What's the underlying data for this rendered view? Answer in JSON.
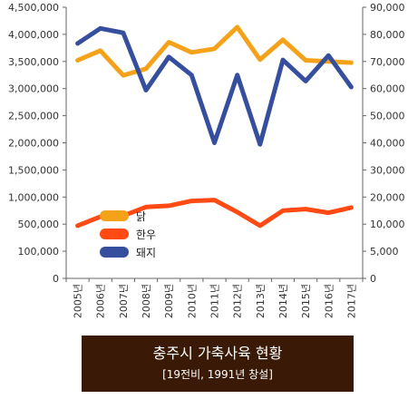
{
  "chart_data": {
    "type": "line",
    "title": "충주시 가축사육 현황",
    "subtitle": "[19전비, 1991년 창설]",
    "categories": [
      "2005년",
      "2006년",
      "2007년",
      "2008년",
      "2009년",
      "2010년",
      "2011년",
      "2012년",
      "2013년",
      "2014년",
      "2015년",
      "2016년",
      "2017년"
    ],
    "left_axis": {
      "ylim": [
        0,
        4500000
      ],
      "tick_labels": [
        "0",
        "100,000",
        "500,000",
        "1,000,000",
        "1,500,000",
        "2,000,000",
        "2,500,000",
        "3,000,000",
        "3,500,000",
        "4,000,000",
        "4,500,000"
      ]
    },
    "right_axis": {
      "ylim": [
        0,
        90000
      ],
      "tick_labels": [
        "0",
        "5,000",
        "10,000",
        "20,000",
        "30,000",
        "40,000",
        "50,000",
        "60,000",
        "70,000",
        "80,000",
        "90,000"
      ]
    },
    "series": [
      {
        "name": "닭",
        "axis": "left",
        "color": "#f5a21b",
        "values": [
          3620000,
          3780000,
          3370000,
          3480000,
          3920000,
          3750000,
          3810000,
          4170000,
          3630000,
          3960000,
          3620000,
          3600000,
          3580000
        ]
      },
      {
        "name": "한우",
        "axis": "right",
        "color": "#ff4a14",
        "values": [
          17500,
          20500,
          20800,
          23700,
          24100,
          25700,
          26000,
          22000,
          17500,
          22500,
          23000,
          21800,
          23500
        ]
      },
      {
        "name": "돼지",
        "axis": "right",
        "color": "#354f9e",
        "values": [
          78000,
          83000,
          81500,
          62500,
          73500,
          67500,
          45000,
          67500,
          44500,
          72500,
          65500,
          74000,
          63500
        ]
      }
    ],
    "legend": {
      "position": "lower-left"
    },
    "grid": false
  }
}
